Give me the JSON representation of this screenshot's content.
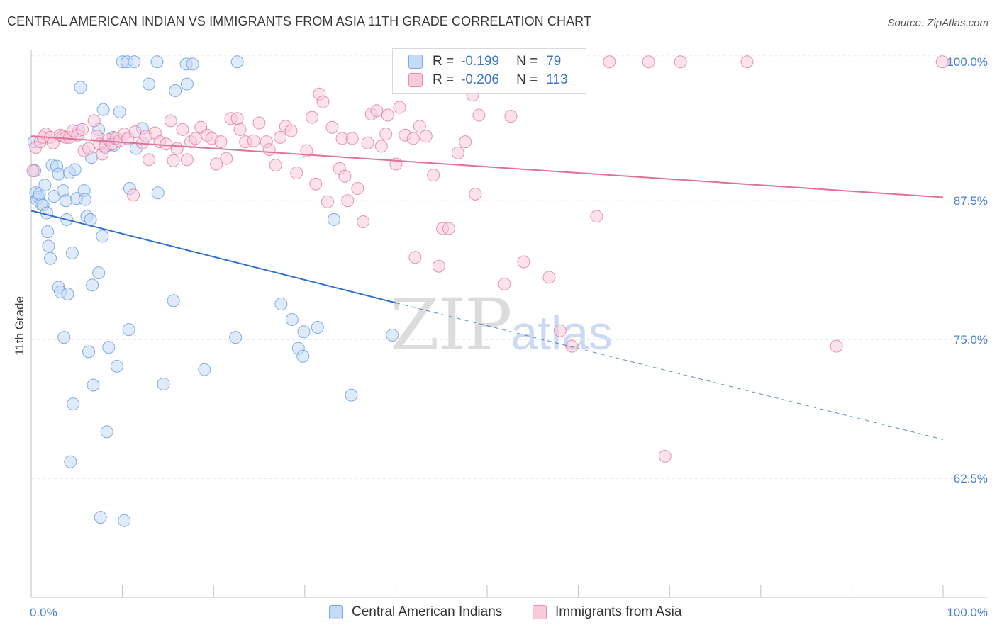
{
  "title": "CENTRAL AMERICAN INDIAN VS IMMIGRANTS FROM ASIA 11TH GRADE CORRELATION CHART",
  "source": "Source: ZipAtlas.com",
  "watermark": {
    "zip": "ZIP",
    "atlas": "atlas"
  },
  "legend": {
    "rows": [
      {
        "r_label": "R =",
        "r_value": "-0.199",
        "n_label": "N =",
        "n_value": "79",
        "color": "#7aaae8",
        "fill": "#c5daf5"
      },
      {
        "r_label": "R =",
        "r_value": "-0.206",
        "n_label": "N =",
        "n_value": "113",
        "color": "#ee8cb0",
        "fill": "#f9cadb"
      }
    ]
  },
  "bottom_legend": [
    {
      "label": "Central American Indians",
      "color": "#7aaae8",
      "fill": "#c5daf5"
    },
    {
      "label": "Immigrants from Asia",
      "color": "#ee8cb0",
      "fill": "#f9cadb"
    }
  ],
  "chart_data": {
    "type": "scatter",
    "title": "CENTRAL AMERICAN INDIAN VS IMMIGRANTS FROM ASIA 11TH GRADE CORRELATION CHART",
    "xlabel": "",
    "ylabel": "11th Grade",
    "xlim": [
      0,
      100
    ],
    "ylim": [
      51.8,
      101.1
    ],
    "x_tick_labels": [
      "0.0%",
      "100.0%"
    ],
    "y_ticks": [
      62.5,
      75.0,
      87.5,
      100.0
    ],
    "y_tick_labels": [
      "62.5%",
      "75.0%",
      "87.5%",
      "100.0%"
    ],
    "grid": true,
    "legend_position": "top-center",
    "series": [
      {
        "name": "Central American Indians",
        "color": "#5b93e0",
        "fill": "#c5daf5",
        "trend": {
          "x0": 0,
          "y0": 86.6,
          "x1": 40,
          "y1": 78.3,
          "x_dash_end": 100,
          "y_dash_end": 66.0
        },
        "points": [
          [
            0.3,
            92.8
          ],
          [
            0.4,
            90.2
          ],
          [
            0.5,
            88.2
          ],
          [
            0.6,
            87.6
          ],
          [
            0.8,
            87.8
          ],
          [
            0.9,
            88.1
          ],
          [
            1.1,
            87.2
          ],
          [
            1.3,
            87.1
          ],
          [
            1.5,
            88.9
          ],
          [
            1.7,
            86.4
          ],
          [
            1.8,
            84.7
          ],
          [
            1.9,
            83.4
          ],
          [
            2.1,
            82.3
          ],
          [
            2.3,
            90.7
          ],
          [
            2.5,
            87.9
          ],
          [
            2.8,
            90.6
          ],
          [
            3.0,
            89.9
          ],
          [
            3.0,
            79.7
          ],
          [
            3.2,
            79.3
          ],
          [
            3.5,
            88.4
          ],
          [
            3.6,
            75.2
          ],
          [
            3.8,
            87.5
          ],
          [
            3.9,
            85.8
          ],
          [
            4.0,
            79.1
          ],
          [
            4.2,
            90.0
          ],
          [
            4.3,
            64.0
          ],
          [
            4.5,
            82.8
          ],
          [
            4.6,
            69.2
          ],
          [
            4.8,
            90.3
          ],
          [
            5.0,
            87.7
          ],
          [
            5.2,
            93.8
          ],
          [
            5.4,
            97.7
          ],
          [
            5.8,
            88.4
          ],
          [
            5.9,
            87.6
          ],
          [
            6.1,
            86.1
          ],
          [
            6.3,
            73.9
          ],
          [
            6.5,
            85.8
          ],
          [
            6.6,
            91.4
          ],
          [
            6.7,
            79.9
          ],
          [
            6.8,
            70.9
          ],
          [
            7.4,
            81.0
          ],
          [
            7.4,
            93.9
          ],
          [
            7.6,
            59.0
          ],
          [
            7.8,
            84.3
          ],
          [
            7.9,
            95.7
          ],
          [
            8.1,
            92.3
          ],
          [
            8.3,
            66.7
          ],
          [
            8.5,
            74.3
          ],
          [
            9.0,
            93.2
          ],
          [
            9.1,
            92.5
          ],
          [
            9.4,
            72.6
          ],
          [
            9.7,
            95.5
          ],
          [
            10.0,
            100.0
          ],
          [
            10.2,
            58.7
          ],
          [
            10.5,
            100.0
          ],
          [
            10.7,
            75.9
          ],
          [
            10.8,
            88.6
          ],
          [
            11.3,
            100.0
          ],
          [
            11.5,
            92.2
          ],
          [
            12.2,
            94.0
          ],
          [
            12.9,
            98.0
          ],
          [
            13.8,
            100.0
          ],
          [
            13.9,
            88.2
          ],
          [
            14.5,
            71.0
          ],
          [
            15.6,
            78.5
          ],
          [
            15.8,
            97.4
          ],
          [
            17.1,
            98.0
          ],
          [
            17.0,
            99.8
          ],
          [
            17.7,
            99.8
          ],
          [
            19.0,
            72.3
          ],
          [
            22.4,
            75.2
          ],
          [
            22.6,
            100.0
          ],
          [
            27.4,
            78.2
          ],
          [
            28.6,
            76.8
          ],
          [
            29.3,
            74.2
          ],
          [
            29.8,
            73.5
          ],
          [
            29.9,
            75.7
          ],
          [
            31.4,
            76.1
          ],
          [
            33.2,
            85.8
          ],
          [
            35.1,
            70.0
          ],
          [
            39.6,
            75.4
          ]
        ]
      },
      {
        "name": "Immigrants from Asia",
        "color": "#e2709a",
        "fill": "#f9cadb",
        "trend": {
          "x0": 0,
          "y0": 93.3,
          "x1": 100,
          "y1": 87.8
        },
        "points": [
          [
            0.2,
            90.2
          ],
          [
            0.5,
            92.3
          ],
          [
            1.0,
            92.8
          ],
          [
            1.3,
            93.2
          ],
          [
            1.6,
            93.5
          ],
          [
            2.1,
            93.2
          ],
          [
            2.4,
            92.7
          ],
          [
            3.2,
            93.4
          ],
          [
            3.5,
            93.3
          ],
          [
            3.8,
            93.2
          ],
          [
            4.2,
            93.2
          ],
          [
            4.6,
            93.8
          ],
          [
            5.1,
            93.4
          ],
          [
            5.6,
            93.9
          ],
          [
            5.8,
            92.0
          ],
          [
            6.3,
            92.2
          ],
          [
            6.9,
            94.7
          ],
          [
            7.2,
            93.3
          ],
          [
            7.5,
            92.6
          ],
          [
            7.8,
            91.7
          ],
          [
            8.1,
            92.4
          ],
          [
            8.5,
            93.0
          ],
          [
            8.9,
            92.6
          ],
          [
            9.3,
            93.1
          ],
          [
            9.7,
            92.9
          ],
          [
            10.2,
            93.5
          ],
          [
            10.6,
            93.1
          ],
          [
            11.2,
            88.0
          ],
          [
            11.4,
            93.7
          ],
          [
            12.2,
            92.7
          ],
          [
            12.6,
            93.3
          ],
          [
            12.9,
            91.2
          ],
          [
            13.6,
            93.6
          ],
          [
            14.1,
            92.8
          ],
          [
            14.8,
            92.6
          ],
          [
            15.3,
            94.7
          ],
          [
            15.6,
            91.1
          ],
          [
            16.0,
            92.2
          ],
          [
            16.6,
            93.9
          ],
          [
            17.1,
            91.2
          ],
          [
            17.5,
            92.8
          ],
          [
            18.0,
            93.1
          ],
          [
            18.6,
            94.1
          ],
          [
            19.3,
            93.4
          ],
          [
            19.8,
            93.1
          ],
          [
            20.3,
            90.8
          ],
          [
            20.8,
            92.8
          ],
          [
            21.4,
            91.3
          ],
          [
            21.9,
            94.9
          ],
          [
            22.6,
            94.9
          ],
          [
            22.9,
            93.9
          ],
          [
            23.5,
            92.8
          ],
          [
            24.4,
            92.9
          ],
          [
            25.0,
            94.5
          ],
          [
            25.8,
            92.8
          ],
          [
            26.1,
            92.1
          ],
          [
            26.8,
            90.7
          ],
          [
            27.3,
            93.2
          ],
          [
            27.9,
            94.2
          ],
          [
            28.5,
            93.8
          ],
          [
            29.1,
            90.0
          ],
          [
            30.2,
            92.0
          ],
          [
            30.8,
            95.0
          ],
          [
            31.2,
            89.0
          ],
          [
            31.6,
            97.1
          ],
          [
            32.0,
            96.4
          ],
          [
            32.5,
            87.4
          ],
          [
            33.0,
            94.1
          ],
          [
            33.8,
            90.4
          ],
          [
            34.1,
            93.1
          ],
          [
            34.4,
            89.7
          ],
          [
            34.7,
            87.5
          ],
          [
            35.2,
            93.1
          ],
          [
            35.8,
            88.6
          ],
          [
            36.4,
            85.6
          ],
          [
            36.9,
            92.7
          ],
          [
            37.3,
            95.3
          ],
          [
            37.9,
            95.6
          ],
          [
            38.4,
            92.4
          ],
          [
            38.9,
            93.5
          ],
          [
            39.1,
            95.2
          ],
          [
            40.0,
            90.8
          ],
          [
            40.4,
            95.9
          ],
          [
            41.0,
            93.4
          ],
          [
            41.9,
            93.1
          ],
          [
            42.1,
            82.4
          ],
          [
            42.6,
            94.2
          ],
          [
            43.3,
            93.3
          ],
          [
            44.1,
            89.8
          ],
          [
            44.7,
            81.6
          ],
          [
            45.1,
            85.0
          ],
          [
            45.8,
            85.0
          ],
          [
            46.8,
            91.8
          ],
          [
            47.6,
            92.8
          ],
          [
            48.7,
            88.1
          ],
          [
            48.4,
            97.0
          ],
          [
            49.1,
            95.2
          ],
          [
            51.9,
            80.0
          ],
          [
            52.6,
            95.1
          ],
          [
            53.6,
            100.0
          ],
          [
            54.0,
            82.0
          ],
          [
            56.8,
            80.6
          ],
          [
            58.0,
            75.8
          ],
          [
            59.3,
            74.4
          ],
          [
            62.0,
            86.1
          ],
          [
            63.4,
            100.0
          ],
          [
            67.7,
            100.0
          ],
          [
            69.5,
            64.5
          ],
          [
            71.2,
            100.0
          ],
          [
            78.5,
            100.0
          ],
          [
            88.3,
            74.4
          ],
          [
            99.9,
            100.0
          ],
          [
            53.6,
            100.0
          ]
        ]
      }
    ]
  }
}
